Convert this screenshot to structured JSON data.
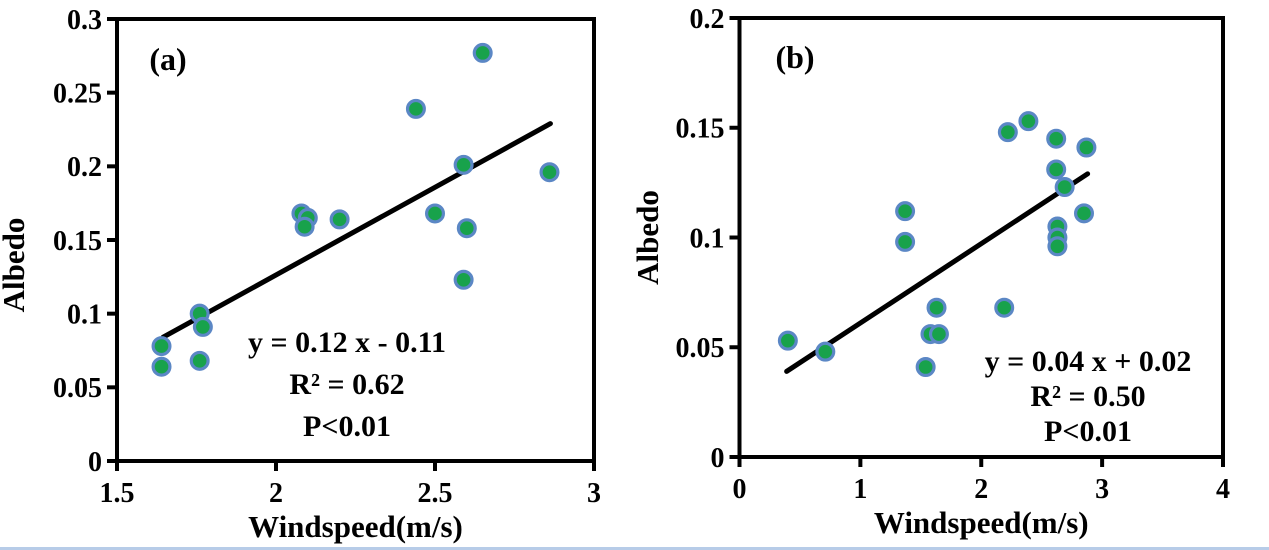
{
  "figure": {
    "background": "#ffffff",
    "bottom_border_color": "#b7cce8"
  },
  "colors": {
    "marker_fill": "#18a24b",
    "marker_stroke": "#5b87c5",
    "trendline": "#000000",
    "axis": "#000000",
    "text": "#000000"
  },
  "chart_data": [
    {
      "id": "a",
      "type": "scatter",
      "panel_label": "(a)",
      "xlabel": "Windspeed(m/s)",
      "ylabel": "Albedo",
      "xlim": [
        1.5,
        3
      ],
      "ylim": [
        0,
        0.3
      ],
      "xticks": [
        "1.5",
        "2",
        "2.5",
        "3"
      ],
      "yticks": [
        "0",
        "0.05",
        "0.1",
        "0.15",
        "0.2",
        "0.25",
        "0.3"
      ],
      "grid": false,
      "legend": "none",
      "points": [
        [
          1.64,
          0.078
        ],
        [
          1.64,
          0.064
        ],
        [
          1.76,
          0.1
        ],
        [
          1.77,
          0.091
        ],
        [
          1.76,
          0.068
        ],
        [
          2.08,
          0.168
        ],
        [
          2.1,
          0.165
        ],
        [
          2.09,
          0.159
        ],
        [
          2.2,
          0.164
        ],
        [
          2.44,
          0.239
        ],
        [
          2.5,
          0.168
        ],
        [
          2.59,
          0.201
        ],
        [
          2.6,
          0.158
        ],
        [
          2.59,
          0.123
        ],
        [
          2.65,
          0.277
        ],
        [
          2.86,
          0.196
        ]
      ],
      "trendline": {
        "x1": 1.645,
        "y1": 0.084,
        "x2": 2.863,
        "y2": 0.229
      },
      "equation": "y = 0.12 x - 0.11",
      "r_squared": "R² = 0.62",
      "p_value": "P<0.01"
    },
    {
      "id": "b",
      "type": "scatter",
      "panel_label": "(b)",
      "xlabel": "Windspeed(m/s)",
      "ylabel": "Albedo",
      "xlim": [
        0,
        4
      ],
      "ylim": [
        0,
        0.2
      ],
      "xticks": [
        "0",
        "1",
        "2",
        "3",
        "4"
      ],
      "yticks": [
        "0",
        "0.05",
        "0.1",
        "0.15",
        "0.2"
      ],
      "grid": false,
      "legend": "none",
      "points": [
        [
          0.4,
          0.053
        ],
        [
          0.71,
          0.048
        ],
        [
          1.37,
          0.112
        ],
        [
          1.37,
          0.098
        ],
        [
          1.54,
          0.041
        ],
        [
          1.58,
          0.056
        ],
        [
          1.65,
          0.056
        ],
        [
          1.63,
          0.068
        ],
        [
          2.19,
          0.068
        ],
        [
          2.22,
          0.148
        ],
        [
          2.39,
          0.153
        ],
        [
          2.62,
          0.145
        ],
        [
          2.87,
          0.141
        ],
        [
          2.62,
          0.131
        ],
        [
          2.69,
          0.123
        ],
        [
          2.85,
          0.111
        ],
        [
          2.63,
          0.105
        ],
        [
          2.63,
          0.1
        ],
        [
          2.63,
          0.096
        ]
      ],
      "trendline": {
        "x1": 0.39,
        "y1": 0.039,
        "x2": 2.88,
        "y2": 0.129
      },
      "equation": "y = 0.04 x + 0.02",
      "r_squared": "R² = 0.50",
      "p_value": "P<0.01"
    }
  ]
}
